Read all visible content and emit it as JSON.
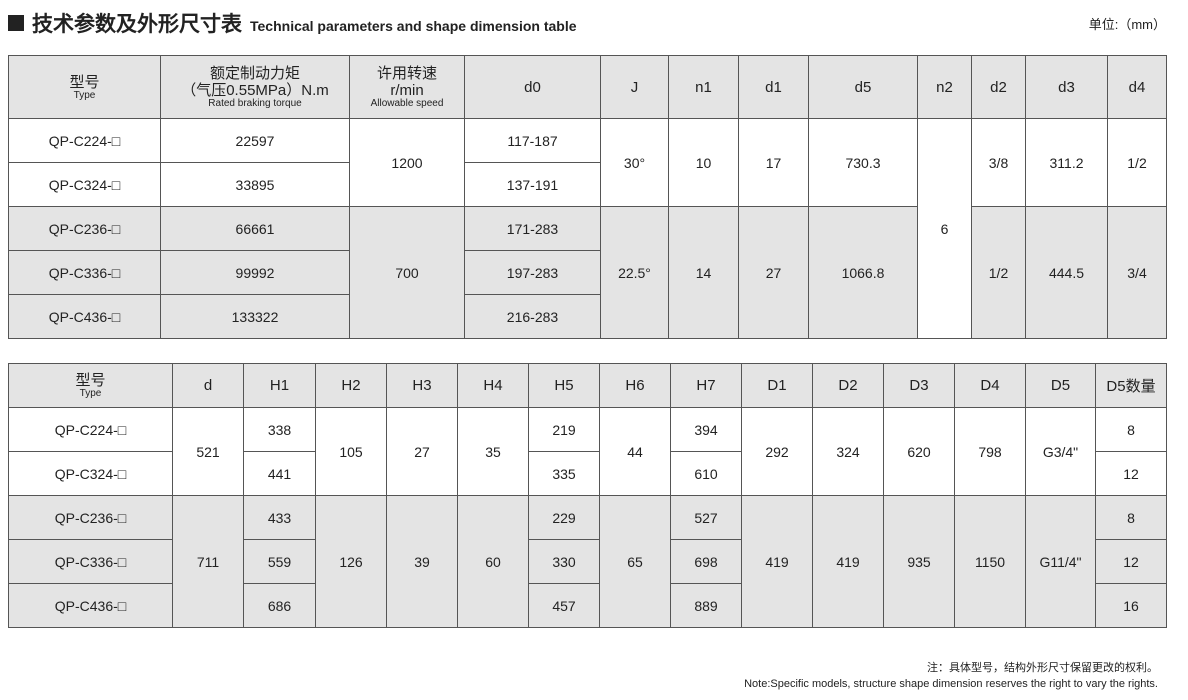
{
  "header": {
    "title_zh": "技术参数及外形尺寸表",
    "title_en": "Technical parameters and shape dimension table",
    "unit": "单位:（mm）"
  },
  "table1": {
    "headers": {
      "type_zh": "型号",
      "type_en": "Type",
      "torque_zh": "额定制动力矩",
      "torque_unit": "（气压0.55MPa）N.m",
      "torque_en": "Rated braking torque",
      "speed_zh": "许用转速",
      "speed_unit": "r/min",
      "speed_en": "Allowable speed",
      "d0": "d0",
      "J": "J",
      "n1": "n1",
      "d1": "d1",
      "d5": "d5",
      "n2": "n2",
      "d2": "d2",
      "d3": "d3",
      "d4": "d4"
    },
    "models": [
      "QP-C224-□",
      "QP-C324-□",
      "QP-C236-□",
      "QP-C336-□",
      "QP-C436-□"
    ],
    "torque": [
      "22597",
      "33895",
      "66661",
      "99992",
      "133322"
    ],
    "d0": [
      "117-187",
      "137-191",
      "171-283",
      "197-283",
      "216-283"
    ],
    "groupA": {
      "speed": "1200",
      "J": "30°",
      "n1": "10",
      "d1": "17",
      "d5": "730.3",
      "d2": "3/8",
      "d3": "311.2",
      "d4": "1/2"
    },
    "groupB": {
      "speed": "700",
      "J": "22.5°",
      "n1": "14",
      "d1": "27",
      "d5": "1066.8",
      "d2": "1/2",
      "d3": "444.5",
      "d4": "3/4"
    },
    "n2": "6"
  },
  "table2": {
    "headers": {
      "type_zh": "型号",
      "type_en": "Type",
      "d": "d",
      "H1": "H1",
      "H2": "H2",
      "H3": "H3",
      "H4": "H4",
      "H5": "H5",
      "H6": "H6",
      "H7": "H7",
      "D1": "D1",
      "D2": "D2",
      "D3": "D3",
      "D4": "D4",
      "D5": "D5",
      "D5n": "D5数量"
    },
    "models": [
      "QP-C224-□",
      "QP-C324-□",
      "QP-C236-□",
      "QP-C336-□",
      "QP-C436-□"
    ],
    "H1": [
      "338",
      "441",
      "433",
      "559",
      "686"
    ],
    "H5": [
      "219",
      "335",
      "229",
      "330",
      "457"
    ],
    "H7": [
      "394",
      "610",
      "527",
      "698",
      "889"
    ],
    "D5n": [
      "8",
      "12",
      "8",
      "12",
      "16"
    ],
    "groupA": {
      "d": "521",
      "H2": "105",
      "H3": "27",
      "H4": "35",
      "H6": "44",
      "D1": "292",
      "D2": "324",
      "D3": "620",
      "D4": "798",
      "D5": "G3/4\""
    },
    "groupB": {
      "d": "711",
      "H2": "126",
      "H3": "39",
      "H4": "60",
      "H6": "65",
      "D1": "419",
      "D2": "419",
      "D3": "935",
      "D4": "1150",
      "D5": "G11/4\""
    }
  },
  "note": {
    "zh": "注：具体型号，结构外形尺寸保留更改的权利。",
    "en": "Note:Specific models, structure shape dimension reserves the right to vary the rights."
  }
}
